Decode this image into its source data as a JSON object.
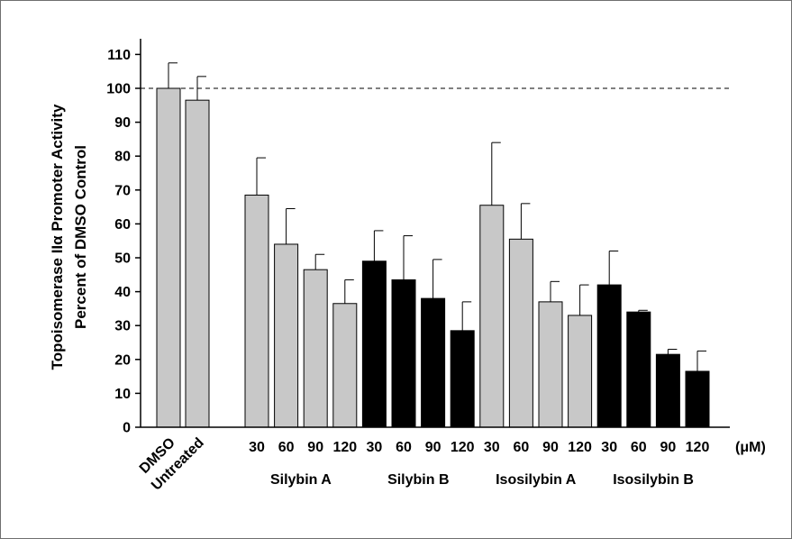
{
  "chart_data": {
    "type": "bar",
    "ylabel_line1": "Topoisomerase IIα Promoter Activity",
    "ylabel_line2": "Percent of DMSO Control",
    "ylim": [
      0,
      115
    ],
    "yticks": [
      0,
      10,
      20,
      30,
      40,
      50,
      60,
      70,
      80,
      90,
      100,
      110
    ],
    "reference_line": 100,
    "unit_label": "(μM)",
    "colors": {
      "gray": "#c8c8c8",
      "black": "#000000"
    },
    "controls": [
      {
        "label": "DMSO",
        "value": 100,
        "error": 7.5,
        "color": "gray"
      },
      {
        "label": "Untreated",
        "value": 96.5,
        "error": 7,
        "color": "gray"
      }
    ],
    "groups": [
      {
        "name": "Silybin A",
        "color": "gray",
        "doses": [
          "30",
          "60",
          "90",
          "120"
        ],
        "values": [
          68.5,
          54,
          46.5,
          36.5
        ],
        "errors": [
          11,
          10.5,
          4.5,
          7
        ]
      },
      {
        "name": "Silybin B",
        "color": "black",
        "doses": [
          "30",
          "60",
          "90",
          "120"
        ],
        "values": [
          49,
          43.5,
          38,
          28.5
        ],
        "errors": [
          9,
          13,
          11.5,
          8.5
        ]
      },
      {
        "name": "Isosilybin A",
        "color": "gray",
        "doses": [
          "30",
          "60",
          "90",
          "120"
        ],
        "values": [
          65.5,
          55.5,
          37,
          33
        ],
        "errors": [
          18.5,
          10.5,
          6,
          9
        ]
      },
      {
        "name": "Isosilybin B",
        "color": "black",
        "doses": [
          "30",
          "60",
          "90",
          "120"
        ],
        "values": [
          42,
          34,
          21.5,
          16.5
        ],
        "errors": [
          10,
          0.5,
          1.5,
          6
        ]
      }
    ]
  }
}
